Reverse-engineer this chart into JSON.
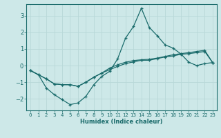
{
  "xlabel": "Humidex (Indice chaleur)",
  "ylabel": "",
  "bg_color": "#cde8e8",
  "line_color": "#1a6b6b",
  "grid_color": "#b8d8d8",
  "xlim": [
    -0.5,
    23.5
  ],
  "ylim": [
    -2.7,
    3.7
  ],
  "xticks": [
    0,
    1,
    2,
    3,
    4,
    5,
    6,
    7,
    8,
    9,
    10,
    11,
    12,
    13,
    14,
    15,
    16,
    17,
    18,
    19,
    20,
    21,
    22,
    23
  ],
  "yticks": [
    -2,
    -1,
    0,
    1,
    2,
    3
  ],
  "line1_x": [
    0,
    1,
    2,
    3,
    4,
    5,
    6,
    7,
    8,
    9,
    10,
    11,
    12,
    13,
    14,
    15,
    16,
    17,
    18,
    19,
    20,
    21,
    22,
    23
  ],
  "line1_y": [
    -0.3,
    -0.55,
    -1.35,
    -1.75,
    -2.05,
    -2.35,
    -2.25,
    -1.85,
    -1.15,
    -0.65,
    -0.35,
    0.4,
    1.65,
    2.35,
    3.45,
    2.3,
    1.8,
    1.25,
    1.05,
    0.7,
    0.2,
    0.0,
    0.12,
    0.18
  ],
  "line2_x": [
    0,
    1,
    2,
    3,
    4,
    5,
    6,
    7,
    8,
    9,
    10,
    11,
    12,
    13,
    14,
    15,
    16,
    17,
    18,
    19,
    20,
    21,
    22,
    23
  ],
  "line2_y": [
    -0.3,
    -0.55,
    -0.8,
    -1.1,
    -1.15,
    -1.15,
    -1.25,
    -1.0,
    -0.7,
    -0.45,
    -0.25,
    -0.05,
    0.12,
    0.22,
    0.32,
    0.32,
    0.42,
    0.52,
    0.58,
    0.68,
    0.72,
    0.78,
    0.85,
    0.18
  ],
  "line3_x": [
    0,
    2,
    3,
    4,
    5,
    6,
    7,
    8,
    9,
    10,
    11,
    12,
    13,
    14,
    15,
    16,
    17,
    18,
    19,
    20,
    21,
    22,
    23
  ],
  "line3_y": [
    -0.3,
    -0.8,
    -1.1,
    -1.15,
    -1.15,
    -1.25,
    -1.0,
    -0.7,
    -0.45,
    -0.15,
    0.05,
    0.2,
    0.3,
    0.35,
    0.38,
    0.45,
    0.55,
    0.65,
    0.72,
    0.78,
    0.85,
    0.92,
    0.18
  ]
}
